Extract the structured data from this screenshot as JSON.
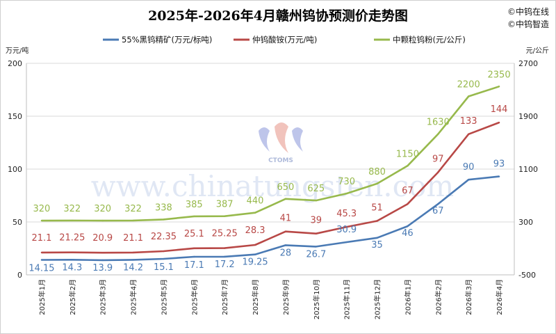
{
  "header": {
    "title": "2025年-2026年4月赣州钨协预测价走势图",
    "brand_line1": "©中钨在线",
    "brand_line2": "©中钨智造"
  },
  "watermark": {
    "text": "www.chinatungsten.com",
    "logo_text": "CTOMS"
  },
  "chart_data": {
    "type": "line",
    "title": "2025年-2026年4月赣州钨协预测价走势图",
    "categories": [
      "2025年1月",
      "2025年2月",
      "2025年3月",
      "2025年4月",
      "2025年5月",
      "2025年6月",
      "2025年7月",
      "2025年8月",
      "2025年9月",
      "2025年10月",
      "2025年11月",
      "2025年12月",
      "2026年1月",
      "2026年2月",
      "2026年3月",
      "2026年4月"
    ],
    "left_axis": {
      "unit": "万元/吨",
      "ylim": [
        0,
        200
      ],
      "ticks": [
        0,
        50,
        100,
        150,
        200
      ]
    },
    "right_axis": {
      "unit": "元/公斤",
      "ylim": [
        -500,
        2700
      ],
      "ticks": [
        -500,
        300,
        1100,
        1900,
        2700
      ]
    },
    "legend_position": "top",
    "grid": "horizontal",
    "series": [
      {
        "name": "55%黑钨精矿(万元/标吨)",
        "axis": "left",
        "color": "#4a7ab4",
        "values": [
          14.15,
          14.3,
          13.9,
          14.2,
          15.1,
          17.1,
          17.2,
          19.25,
          28,
          26.7,
          30.9,
          35,
          46,
          67,
          90,
          93
        ],
        "labels": [
          "14.15",
          "14.3",
          "13.9",
          "14.2",
          "15.1",
          "17.1",
          "17.2",
          "19.25",
          "28",
          "26.7",
          "30.9",
          "35",
          "46",
          "67",
          "90",
          "93"
        ]
      },
      {
        "name": "仲钨酸铵(万元/吨)",
        "axis": "left",
        "color": "#b84846",
        "values": [
          21.1,
          21.25,
          20.9,
          21.1,
          22.35,
          25.1,
          25.25,
          28.3,
          41,
          39,
          45.3,
          51,
          67,
          97,
          133,
          144
        ],
        "labels": [
          "21.1",
          "21.25",
          "20.9",
          "21.1",
          "22.35",
          "25.1",
          "25.25",
          "28.3",
          "41",
          "39",
          "45.3",
          "51",
          "67",
          "97",
          "133",
          "144"
        ]
      },
      {
        "name": "中颗粒钨粉(元/公斤)",
        "axis": "right",
        "color": "#97b94c",
        "values": [
          320,
          322,
          320,
          322,
          338,
          385,
          387,
          440,
          650,
          625,
          730,
          880,
          1150,
          1630,
          2200,
          2350
        ],
        "labels": [
          "320",
          "322",
          "320",
          "322",
          "338",
          "385",
          "387",
          "440",
          "650",
          "625",
          "730",
          "880",
          "1150",
          "1630",
          "2200",
          "2350"
        ]
      }
    ]
  }
}
